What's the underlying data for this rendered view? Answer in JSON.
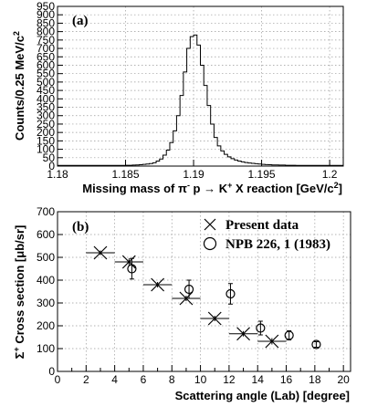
{
  "chart_data": [
    {
      "type": "histogram",
      "panel_label": "(a)",
      "ylabel": "Counts/0.25 MeV/c",
      "ylabel_sup": "2",
      "xlabel_parts": {
        "a": "Missing mass of π",
        "a_sup": "-",
        "b": " p → K",
        "b_sup": "+",
        "c": " X reaction [GeV/c",
        "c_sup": "2",
        "d": "]"
      },
      "xlim": [
        1.18,
        1.201
      ],
      "ylim": [
        0,
        950
      ],
      "xticks": [
        1.18,
        1.185,
        1.19,
        1.195,
        1.2
      ],
      "xtick_labels": [
        "1.18",
        "1.185",
        "1.19",
        "1.195",
        "1.2"
      ],
      "yticks": [
        0,
        50,
        100,
        150,
        200,
        250,
        300,
        350,
        400,
        450,
        500,
        550,
        600,
        650,
        700,
        750,
        800,
        850,
        900,
        950
      ],
      "ytick_labels": [
        "0",
        "50",
        "100",
        "150",
        "200",
        "250",
        "300",
        "350",
        "400",
        "450",
        "500",
        "550",
        "600",
        "650",
        "700",
        "750",
        "800",
        "850",
        "900",
        "950"
      ],
      "bin_width": 0.00025,
      "bin_start": 1.18,
      "counts": [
        4,
        4,
        4,
        4,
        4,
        4,
        4,
        4,
        4,
        4,
        4,
        4,
        4,
        4,
        4,
        4,
        4,
        4,
        4,
        4,
        5,
        5,
        6,
        7,
        8,
        10,
        12,
        15,
        20,
        30,
        42,
        65,
        95,
        140,
        210,
        300,
        420,
        560,
        700,
        770,
        780,
        720,
        600,
        480,
        360,
        250,
        170,
        120,
        90,
        70,
        55,
        44,
        36,
        30,
        25,
        21,
        18,
        16,
        14,
        12,
        10,
        9,
        8,
        7,
        7,
        6,
        6,
        5,
        5,
        5,
        4,
        4,
        4,
        4,
        4,
        4,
        4,
        4,
        4,
        4,
        4,
        4,
        4,
        4
      ],
      "grid": true
    },
    {
      "type": "scatter",
      "panel_label": "(b)",
      "ylabel_parts": {
        "a": "Σ",
        "a_sup": "+",
        "b": " Cross section [μb/sr]"
      },
      "xlabel": "Scattering angle (Lab) [degree]",
      "xlim": [
        0,
        20.5
      ],
      "ylim": [
        0,
        700
      ],
      "xticks": [
        0,
        1,
        2,
        3,
        4,
        5,
        6,
        7,
        8,
        9,
        10,
        11,
        12,
        13,
        14,
        15,
        16,
        17,
        18,
        19,
        20
      ],
      "xtick_labels": [
        "0",
        "2",
        "4",
        "6",
        "8",
        "10",
        "12",
        "14",
        "16",
        "18",
        "20"
      ],
      "xtick_label_values": [
        0,
        2,
        4,
        6,
        8,
        10,
        12,
        14,
        16,
        18,
        20
      ],
      "yticks": [
        0,
        100,
        200,
        300,
        400,
        500,
        600,
        700
      ],
      "ytick_labels": [
        "0",
        "100",
        "200",
        "300",
        "400",
        "500",
        "600",
        "700"
      ],
      "grid": true,
      "series": [
        {
          "name": "Present data",
          "marker": "x",
          "points": [
            {
              "x": 3.0,
              "y": 520,
              "xerr": 1.0,
              "yerr": 10
            },
            {
              "x": 5.0,
              "y": 480,
              "xerr": 1.0,
              "yerr": 15
            },
            {
              "x": 7.0,
              "y": 380,
              "xerr": 1.0,
              "yerr": 12
            },
            {
              "x": 9.0,
              "y": 320,
              "xerr": 1.0,
              "yerr": 12
            },
            {
              "x": 11.0,
              "y": 232,
              "xerr": 1.0,
              "yerr": 12
            },
            {
              "x": 13.0,
              "y": 165,
              "xerr": 1.0,
              "yerr": 12
            },
            {
              "x": 15.0,
              "y": 132,
              "xerr": 1.0,
              "yerr": 14
            }
          ]
        },
        {
          "name": "NPB 226, 1 (1983)",
          "marker": "circle",
          "points": [
            {
              "x": 5.2,
              "y": 450,
              "yerr": 45
            },
            {
              "x": 9.2,
              "y": 360,
              "yerr": 40
            },
            {
              "x": 12.1,
              "y": 340,
              "yerr": 45
            },
            {
              "x": 14.2,
              "y": 190,
              "yerr": 30
            },
            {
              "x": 16.2,
              "y": 158,
              "yerr": 20
            },
            {
              "x": 18.1,
              "y": 118,
              "yerr": 12
            }
          ]
        }
      ]
    }
  ]
}
